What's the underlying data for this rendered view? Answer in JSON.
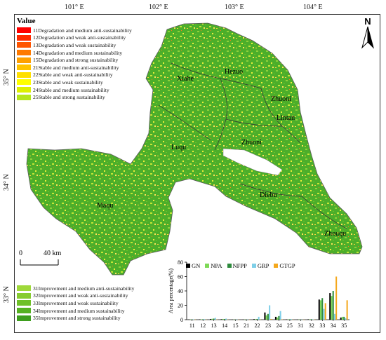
{
  "legend": {
    "title": "Value",
    "top_items": [
      {
        "label": "11Degradation and medium anti-sustainability",
        "color": "#ff0000"
      },
      {
        "label": "12Degradation and weak anti-sustainability",
        "color": "#ff2a00"
      },
      {
        "label": "13Degradation and weak sustainability",
        "color": "#ff5500"
      },
      {
        "label": "14Degradation and medium sustainability",
        "color": "#ff7a00"
      },
      {
        "label": "15Degradation and strong sustainability",
        "color": "#ffa000"
      },
      {
        "label": "21Stable and medium anti-sustainability",
        "color": "#ffc400"
      },
      {
        "label": "22Stable and weak anti-sustainability",
        "color": "#ffdf00"
      },
      {
        "label": "23Stable and weak sustainability",
        "color": "#ffff00"
      },
      {
        "label": "24Stable and medium sustainability",
        "color": "#ddf000"
      },
      {
        "label": "25Stable and strong sustainability",
        "color": "#b5e61d"
      }
    ],
    "bottom_items": [
      {
        "label": "31Improvement and medium anti-sustainability",
        "color": "#9fd93a"
      },
      {
        "label": "32Improvement and weak anti-sustainability",
        "color": "#86cc30"
      },
      {
        "label": "33Improvement and weak sustainability",
        "color": "#6ec028"
      },
      {
        "label": "34Improvement and medium sustainability",
        "color": "#55b122"
      },
      {
        "label": "35Improvement and strong sustainability",
        "color": "#3e9e1e"
      }
    ]
  },
  "axes": {
    "longitude": [
      "101° E",
      "102° E",
      "103° E",
      "104° E"
    ],
    "latitude": [
      "35° N",
      "34° N",
      "33° N"
    ]
  },
  "places": [
    "Xiahe",
    "Hezuo",
    "Zhuoni",
    "Lintan",
    "Luqu",
    "Zhuoni",
    "Maqu",
    "Diebu",
    "Zhouqu"
  ],
  "north_label": "N",
  "scale": {
    "zero": "0",
    "distance": "40 km"
  },
  "chart_data": {
    "type": "bar",
    "categories": [
      "11",
      "12",
      "13",
      "14",
      "15",
      "21",
      "22",
      "23",
      "24",
      "25",
      "31",
      "32",
      "33",
      "34",
      "35"
    ],
    "ylabel": "Area percentage(%)",
    "ylim": [
      0,
      80
    ],
    "yticks": [
      "0",
      "20",
      "40",
      "60",
      "80"
    ],
    "legend_position": "top",
    "series": [
      {
        "name": "GN",
        "color": "#000000",
        "values": [
          0.3,
          0.5,
          1,
          0.7,
          0.2,
          0.2,
          0.8,
          10,
          4,
          0.5,
          0.2,
          0.6,
          28,
          37,
          3
        ]
      },
      {
        "name": "NPA",
        "color": "#7ed957",
        "values": [
          0.3,
          0.5,
          1.2,
          1,
          0.2,
          0.2,
          0.8,
          6,
          3,
          0.4,
          0.2,
          0.5,
          27,
          33,
          4
        ]
      },
      {
        "name": "NFPP",
        "color": "#2e8b3d",
        "values": [
          0.3,
          0.6,
          1.5,
          1,
          0.2,
          0.2,
          1,
          8,
          5,
          0.6,
          0.2,
          0.7,
          30,
          40,
          4
        ]
      },
      {
        "name": "GRP",
        "color": "#7ecfe8",
        "values": [
          0.5,
          0.8,
          2.5,
          1.5,
          0.3,
          0.3,
          4,
          20,
          12,
          0.8,
          0.2,
          0.5,
          15,
          8,
          2
        ]
      },
      {
        "name": "GTGP",
        "color": "#f4a81d",
        "values": [
          0.2,
          0.2,
          0.3,
          0.3,
          0.1,
          0.1,
          0.3,
          1,
          0.5,
          0.2,
          0.1,
          0.3,
          23,
          60,
          27
        ]
      }
    ]
  }
}
